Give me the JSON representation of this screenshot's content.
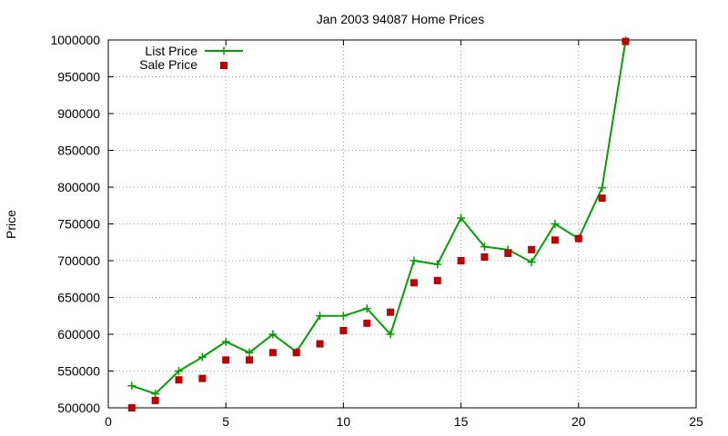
{
  "chart_data": {
    "type": "line",
    "title": "Jan 2003 94087 Home Prices",
    "xlabel": "",
    "ylabel": "Price",
    "xlim": [
      0,
      25
    ],
    "ylim": [
      500000,
      1000000
    ],
    "xticks": [
      0,
      5,
      10,
      15,
      20,
      25
    ],
    "yticks": [
      500000,
      550000,
      600000,
      650000,
      700000,
      750000,
      800000,
      850000,
      900000,
      950000,
      1000000
    ],
    "grid": true,
    "legend_position": "top-left",
    "x": [
      1,
      2,
      3,
      4,
      5,
      6,
      7,
      8,
      9,
      10,
      11,
      12,
      13,
      14,
      15,
      16,
      17,
      18,
      19,
      20,
      21,
      22
    ],
    "series": [
      {
        "name": "List Price",
        "style": "linespoints",
        "marker": "plus",
        "color": "#00a000",
        "values": [
          530000,
          519000,
          550000,
          569000,
          590000,
          575000,
          600000,
          576000,
          625000,
          625000,
          635000,
          600000,
          700000,
          695000,
          758000,
          719000,
          715000,
          698000,
          750000,
          730000,
          799000,
          999000
        ]
      },
      {
        "name": "Sale Price",
        "style": "points",
        "marker": "square",
        "color": "#c00000",
        "values": [
          500000,
          510000,
          538000,
          540000,
          565000,
          565000,
          575000,
          575000,
          587000,
          605000,
          615000,
          630000,
          670000,
          673000,
          700000,
          705000,
          710000,
          715000,
          728000,
          730000,
          785000,
          998000
        ]
      }
    ]
  }
}
